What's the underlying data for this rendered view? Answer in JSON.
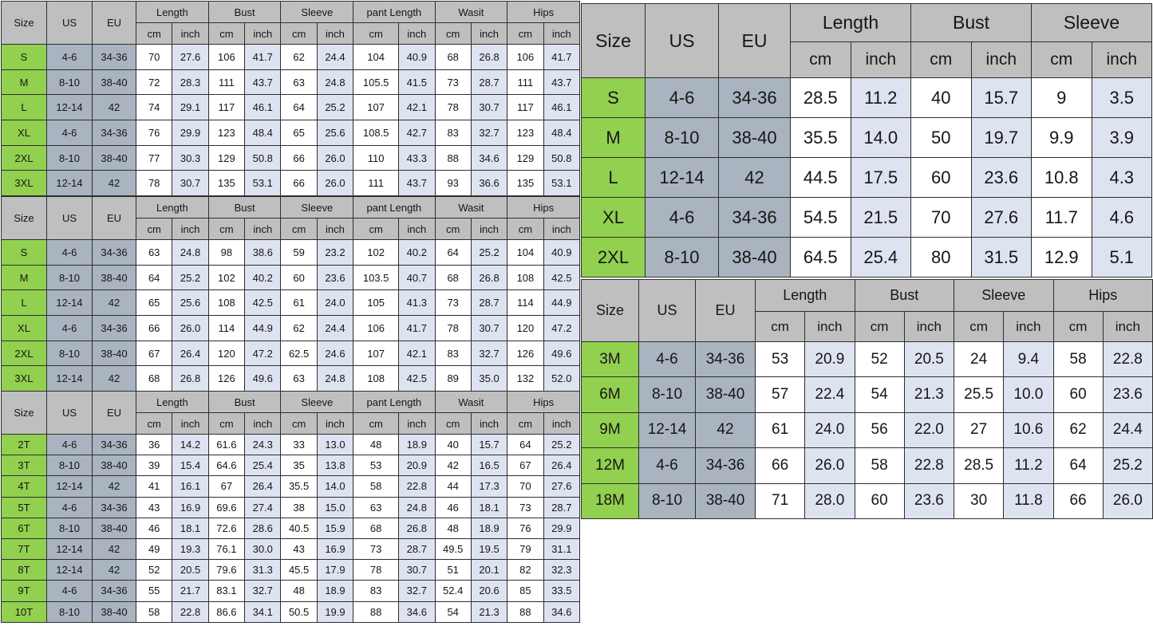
{
  "colors": {
    "header_bg": "#bfbfbf",
    "size_bg": "#92d050",
    "useu_bg": "#a9b4c0",
    "cm_bg": "#ffffff",
    "inch_bg": "#dee3f1",
    "border": "#2e2e2e",
    "text": "#161616",
    "page_bg": "#ffffff"
  },
  "tables": {
    "adult_pants_outfit": {
      "corner_headers": [
        "Size",
        "US",
        "EU"
      ],
      "groups": [
        "Length",
        "Bust",
        "Sleeve",
        "pant Length",
        "Wasit",
        "Hips"
      ],
      "unit_headers": [
        "cm",
        "inch"
      ],
      "rows": [
        [
          "S",
          "4-6",
          "34-36",
          "70",
          "27.6",
          "106",
          "41.7",
          "62",
          "24.4",
          "104",
          "40.9",
          "68",
          "26.8",
          "106",
          "41.7"
        ],
        [
          "M",
          "8-10",
          "38-40",
          "72",
          "28.3",
          "111",
          "43.7",
          "63",
          "24.8",
          "105.5",
          "41.5",
          "73",
          "28.7",
          "111",
          "43.7"
        ],
        [
          "L",
          "12-14",
          "42",
          "74",
          "29.1",
          "117",
          "46.1",
          "64",
          "25.2",
          "107",
          "42.1",
          "78",
          "30.7",
          "117",
          "46.1"
        ],
        [
          "XL",
          "4-6",
          "34-36",
          "76",
          "29.9",
          "123",
          "48.4",
          "65",
          "25.6",
          "108.5",
          "42.7",
          "83",
          "32.7",
          "123",
          "48.4"
        ],
        [
          "2XL",
          "8-10",
          "38-40",
          "77",
          "30.3",
          "129",
          "50.8",
          "66",
          "26.0",
          "110",
          "43.3",
          "88",
          "34.6",
          "129",
          "50.8"
        ],
        [
          "3XL",
          "12-14",
          "42",
          "78",
          "30.7",
          "135",
          "53.1",
          "66",
          "26.0",
          "111",
          "43.7",
          "93",
          "36.6",
          "135",
          "53.1"
        ]
      ]
    },
    "adult_pants_outfit_2": {
      "corner_headers": [
        "Size",
        "US",
        "EU"
      ],
      "groups": [
        "Length",
        "Bust",
        "Sleeve",
        "pant Length",
        "Wasit",
        "Hips"
      ],
      "unit_headers": [
        "cm",
        "inch"
      ],
      "rows": [
        [
          "S",
          "4-6",
          "34-36",
          "63",
          "24.8",
          "98",
          "38.6",
          "59",
          "23.2",
          "102",
          "40.2",
          "64",
          "25.2",
          "104",
          "40.9"
        ],
        [
          "M",
          "8-10",
          "38-40",
          "64",
          "25.2",
          "102",
          "40.2",
          "60",
          "23.6",
          "103.5",
          "40.7",
          "68",
          "26.8",
          "108",
          "42.5"
        ],
        [
          "L",
          "12-14",
          "42",
          "65",
          "25.6",
          "108",
          "42.5",
          "61",
          "24.0",
          "105",
          "41.3",
          "73",
          "28.7",
          "114",
          "44.9"
        ],
        [
          "XL",
          "4-6",
          "34-36",
          "66",
          "26.0",
          "114",
          "44.9",
          "62",
          "24.4",
          "106",
          "41.7",
          "78",
          "30.7",
          "120",
          "47.2"
        ],
        [
          "2XL",
          "8-10",
          "38-40",
          "67",
          "26.4",
          "120",
          "47.2",
          "62.5",
          "24.6",
          "107",
          "42.1",
          "83",
          "32.7",
          "126",
          "49.6"
        ],
        [
          "3XL",
          "12-14",
          "42",
          "68",
          "26.8",
          "126",
          "49.6",
          "63",
          "24.8",
          "108",
          "42.5",
          "89",
          "35.0",
          "132",
          "52.0"
        ]
      ]
    },
    "toddler_pants_outfit": {
      "corner_headers": [
        "Size",
        "US",
        "EU"
      ],
      "groups": [
        "Length",
        "Bust",
        "Sleeve",
        "pant Length",
        "Wasit",
        "Hips"
      ],
      "unit_headers": [
        "cm",
        "inch"
      ],
      "rows": [
        [
          "2T",
          "4-6",
          "34-36",
          "36",
          "14.2",
          "61.6",
          "24.3",
          "33",
          "13.0",
          "48",
          "18.9",
          "40",
          "15.7",
          "64",
          "25.2"
        ],
        [
          "3T",
          "8-10",
          "38-40",
          "39",
          "15.4",
          "64.6",
          "25.4",
          "35",
          "13.8",
          "53",
          "20.9",
          "42",
          "16.5",
          "67",
          "26.4"
        ],
        [
          "4T",
          "12-14",
          "42",
          "41",
          "16.1",
          "67",
          "26.4",
          "35.5",
          "14.0",
          "58",
          "22.8",
          "44",
          "17.3",
          "70",
          "27.6"
        ],
        [
          "5T",
          "4-6",
          "34-36",
          "43",
          "16.9",
          "69.6",
          "27.4",
          "38",
          "15.0",
          "63",
          "24.8",
          "46",
          "18.1",
          "73",
          "28.7"
        ],
        [
          "6T",
          "8-10",
          "38-40",
          "46",
          "18.1",
          "72.6",
          "28.6",
          "40.5",
          "15.9",
          "68",
          "26.8",
          "48",
          "18.9",
          "76",
          "29.9"
        ],
        [
          "7T",
          "12-14",
          "42",
          "49",
          "19.3",
          "76.1",
          "30.0",
          "43",
          "16.9",
          "73",
          "28.7",
          "49.5",
          "19.5",
          "79",
          "31.1"
        ],
        [
          "8T",
          "12-14",
          "42",
          "52",
          "20.5",
          "79.6",
          "31.3",
          "45.5",
          "17.9",
          "78",
          "30.7",
          "51",
          "20.1",
          "82",
          "32.3"
        ],
        [
          "9T",
          "4-6",
          "34-36",
          "55",
          "21.7",
          "83.1",
          "32.7",
          "48",
          "18.9",
          "83",
          "32.7",
          "52.4",
          "20.6",
          "85",
          "33.5"
        ],
        [
          "10T",
          "8-10",
          "38-40",
          "58",
          "22.8",
          "86.6",
          "34.1",
          "50.5",
          "19.9",
          "88",
          "34.6",
          "54",
          "21.3",
          "88",
          "34.6"
        ]
      ]
    },
    "adult_top_garment": {
      "corner_headers": [
        "Size",
        "US",
        "EU"
      ],
      "groups": [
        "Length",
        "Bust",
        "Sleeve"
      ],
      "unit_headers": [
        "cm",
        "inch"
      ],
      "rows": [
        [
          "S",
          "4-6",
          "34-36",
          "28.5",
          "11.2",
          "40",
          "15.7",
          "9",
          "3.5"
        ],
        [
          "M",
          "8-10",
          "38-40",
          "35.5",
          "14.0",
          "50",
          "19.7",
          "9.9",
          "3.9"
        ],
        [
          "L",
          "12-14",
          "42",
          "44.5",
          "17.5",
          "60",
          "23.6",
          "10.8",
          "4.3"
        ],
        [
          "XL",
          "4-6",
          "34-36",
          "54.5",
          "21.5",
          "70",
          "27.6",
          "11.7",
          "4.6"
        ],
        [
          "2XL",
          "8-10",
          "38-40",
          "64.5",
          "25.4",
          "80",
          "31.5",
          "12.9",
          "5.1"
        ]
      ]
    },
    "baby_garment": {
      "corner_headers": [
        "Size",
        "US",
        "EU"
      ],
      "groups": [
        "Length",
        "Bust",
        "Sleeve",
        "Hips"
      ],
      "unit_headers": [
        "cm",
        "inch"
      ],
      "rows": [
        [
          "3M",
          "4-6",
          "34-36",
          "53",
          "20.9",
          "52",
          "20.5",
          "24",
          "9.4",
          "58",
          "22.8"
        ],
        [
          "6M",
          "8-10",
          "38-40",
          "57",
          "22.4",
          "54",
          "21.3",
          "25.5",
          "10.0",
          "60",
          "23.6"
        ],
        [
          "9M",
          "12-14",
          "42",
          "61",
          "24.0",
          "56",
          "22.0",
          "27",
          "10.6",
          "62",
          "24.4"
        ],
        [
          "12M",
          "4-6",
          "34-36",
          "66",
          "26.0",
          "58",
          "22.8",
          "28.5",
          "11.2",
          "64",
          "25.2"
        ],
        [
          "18M",
          "8-10",
          "38-40",
          "71",
          "28.0",
          "60",
          "23.6",
          "30",
          "11.8",
          "66",
          "26.0"
        ]
      ]
    }
  }
}
